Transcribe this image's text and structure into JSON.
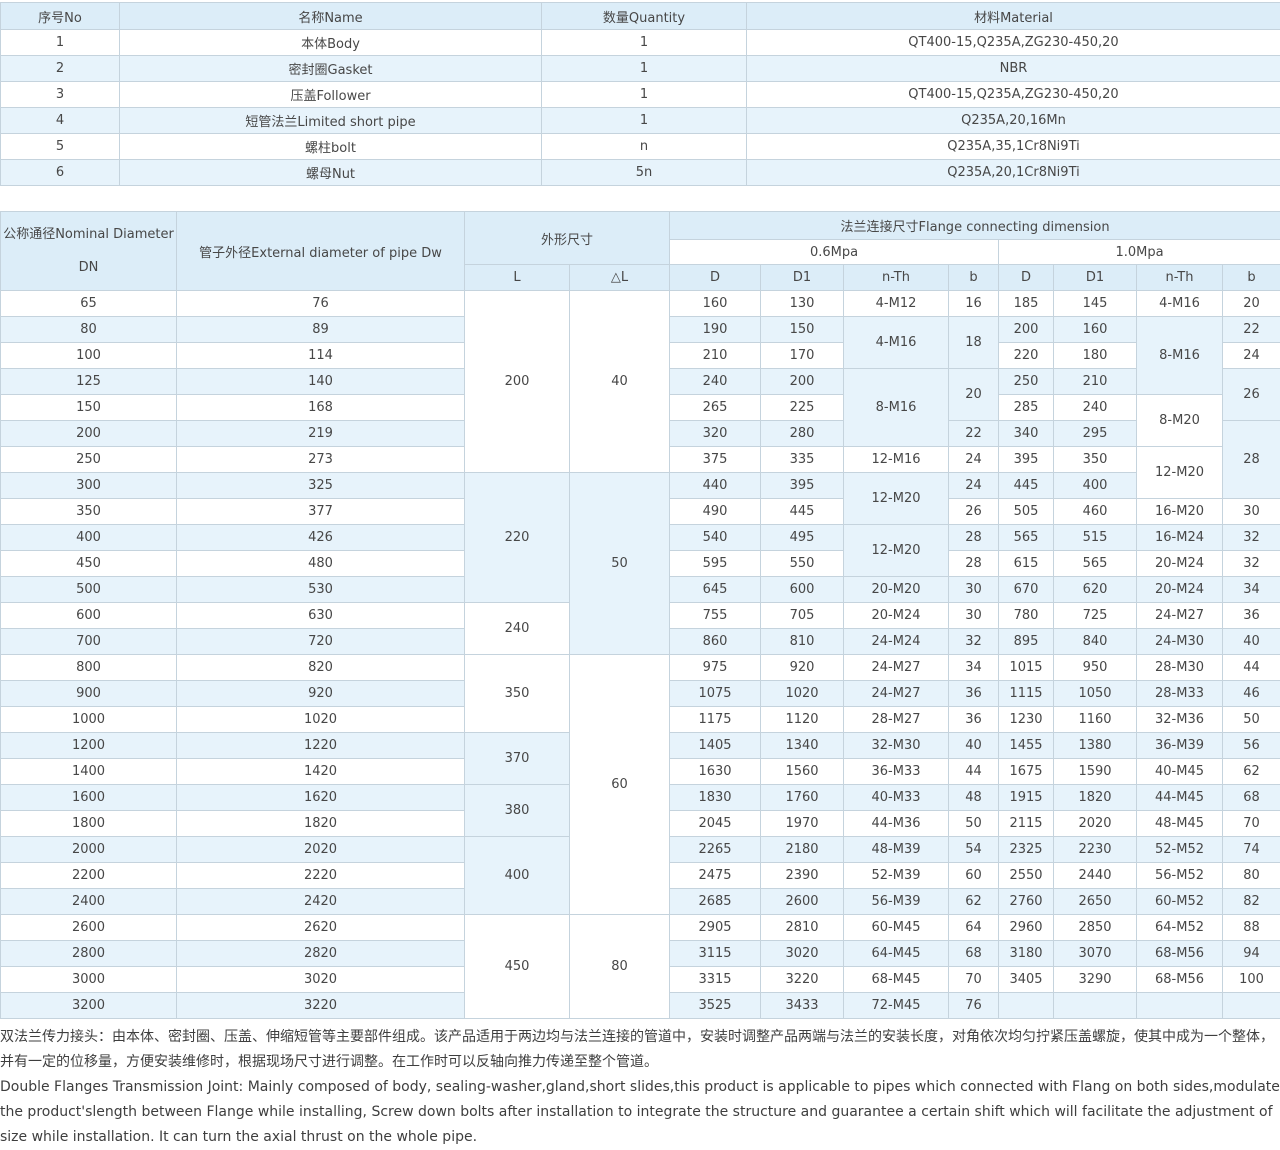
{
  "colors": {
    "header_bg": "#dcedf8",
    "stripe_bg": "#e7f3fb",
    "border": "#c5d3dd",
    "text": "#474747"
  },
  "parts_table": {
    "headers": [
      "序号No",
      "名称Name",
      "数量Quantity",
      "材料Material"
    ],
    "rows": [
      [
        "1",
        "本体Body",
        "1",
        "QT400-15,Q235A,ZG230-450,20"
      ],
      [
        "2",
        "密封圈Gasket",
        "1",
        "NBR"
      ],
      [
        "3",
        "压盖Follower",
        "1",
        "QT400-15,Q235A,ZG230-450,20"
      ],
      [
        "4",
        "短管法兰Limited short pipe",
        "1",
        "Q235A,20,16Mn"
      ],
      [
        "5",
        "螺柱bolt",
        "n",
        "Q235A,35,1Cr8Ni9Ti"
      ],
      [
        "6",
        "螺母Nut",
        "5n",
        "Q235A,20,1Cr8Ni9Ti"
      ]
    ]
  },
  "dimension_table": {
    "header": {
      "dn_line1": "公称通径Nominal Diameter",
      "dn_line2": "DN",
      "dw": "管子外径External diameter of pipe Dw",
      "shape": "外形尺寸",
      "flange": "法兰连接尺寸Flange connecting dimension",
      "p06": "0.6Mpa",
      "p10": "1.0Mpa",
      "sub": [
        "L",
        "△L",
        "D",
        "D1",
        "n-Th",
        "b",
        "D",
        "D1",
        "n-Th",
        "b"
      ]
    },
    "rows": [
      [
        "65",
        "76",
        {
          "v": "200",
          "rs": 7
        },
        {
          "v": "40",
          "rs": 7
        },
        "160",
        "130",
        "4-M12",
        "16",
        "185",
        "145",
        "4-M16",
        "20"
      ],
      [
        "80",
        "89",
        "190",
        "150",
        {
          "v": "4-M16",
          "rs": 2
        },
        {
          "v": "18",
          "rs": 2
        },
        "200",
        "160",
        {
          "v": "8-M16",
          "rs": 3
        },
        "22"
      ],
      [
        "100",
        "114",
        "210",
        "170",
        "220",
        "180",
        "24"
      ],
      [
        "125",
        "140",
        "240",
        "200",
        {
          "v": "8-M16",
          "rs": 3
        },
        {
          "v": "20",
          "rs": 2
        },
        "250",
        "210",
        {
          "v": "26",
          "rs": 2
        }
      ],
      [
        "150",
        "168",
        "265",
        "225",
        "285",
        "240",
        {
          "v": "8-M20",
          "rs": 2
        }
      ],
      [
        "200",
        "219",
        "320",
        "280",
        "22",
        "340",
        "295",
        {
          "v": "28",
          "rs": 3
        }
      ],
      [
        "250",
        "273",
        "375",
        "335",
        "12-M16",
        "24",
        "395",
        "350",
        {
          "v": "12-M20",
          "rs": 2
        }
      ],
      [
        "300",
        "325",
        {
          "v": "220",
          "rs": 5
        },
        {
          "v": "50",
          "rs": 7
        },
        "440",
        "395",
        {
          "v": "12-M20",
          "rs": 2
        },
        "24",
        "445",
        "400"
      ],
      [
        "350",
        "377",
        "490",
        "445",
        "26",
        "505",
        "460",
        "16-M20",
        "30"
      ],
      [
        "400",
        "426",
        "540",
        "495",
        {
          "v": "12-M20",
          "rs": 2
        },
        "28",
        "565",
        "515",
        "16-M24",
        "32"
      ],
      [
        "450",
        "480",
        "595",
        "550",
        "28",
        "615",
        "565",
        "20-M24",
        "32"
      ],
      [
        "500",
        "530",
        "645",
        "600",
        "20-M20",
        "30",
        "670",
        "620",
        "20-M24",
        "34"
      ],
      [
        "600",
        "630",
        {
          "v": "240",
          "rs": 2
        },
        "755",
        "705",
        "20-M24",
        "30",
        "780",
        "725",
        "24-M27",
        "36"
      ],
      [
        "700",
        "720",
        "860",
        "810",
        "24-M24",
        "32",
        "895",
        "840",
        "24-M30",
        "40"
      ],
      [
        "800",
        "820",
        {
          "v": "350",
          "rs": 3
        },
        {
          "v": "60",
          "rs": 10
        },
        "975",
        "920",
        "24-M27",
        "34",
        "1015",
        "950",
        "28-M30",
        "44"
      ],
      [
        "900",
        "920",
        "1075",
        "1020",
        "24-M27",
        "36",
        "1115",
        "1050",
        "28-M33",
        "46"
      ],
      [
        "1000",
        "1020",
        "1175",
        "1120",
        "28-M27",
        "36",
        "1230",
        "1160",
        "32-M36",
        "50"
      ],
      [
        "1200",
        "1220",
        {
          "v": "370",
          "rs": 2
        },
        "1405",
        "1340",
        "32-M30",
        "40",
        "1455",
        "1380",
        "36-M39",
        "56"
      ],
      [
        "1400",
        "1420",
        "1630",
        "1560",
        "36-M33",
        "44",
        "1675",
        "1590",
        "40-M45",
        "62"
      ],
      [
        "1600",
        "1620",
        {
          "v": "380",
          "rs": 2
        },
        "1830",
        "1760",
        "40-M33",
        "48",
        "1915",
        "1820",
        "44-M45",
        "68"
      ],
      [
        "1800",
        "1820",
        "2045",
        "1970",
        "44-M36",
        "50",
        "2115",
        "2020",
        "48-M45",
        "70"
      ],
      [
        "2000",
        "2020",
        {
          "v": "400",
          "rs": 3
        },
        "2265",
        "2180",
        "48-M39",
        "54",
        "2325",
        "2230",
        "52-M52",
        "74"
      ],
      [
        "2200",
        "2220",
        "2475",
        "2390",
        "52-M39",
        "60",
        "2550",
        "2440",
        "56-M52",
        "80"
      ],
      [
        "2400",
        "2420",
        "2685",
        "2600",
        "56-M39",
        "62",
        "2760",
        "2650",
        "60-M52",
        "82"
      ],
      [
        "2600",
        "2620",
        {
          "v": "450",
          "rs": 4
        },
        {
          "v": "80",
          "rs": 4
        },
        "2905",
        "2810",
        "60-M45",
        "64",
        "2960",
        "2850",
        "64-M52",
        "88"
      ],
      [
        "2800",
        "2820",
        "3115",
        "3020",
        "64-M45",
        "68",
        "3180",
        "3070",
        "68-M56",
        "94"
      ],
      [
        "3000",
        "3020",
        "3315",
        "3220",
        "68-M45",
        "70",
        "3405",
        "3290",
        "68-M56",
        "100"
      ],
      [
        "3200",
        "3220",
        "3525",
        "3433",
        "72-M45",
        "76",
        "",
        "",
        "",
        ""
      ]
    ]
  },
  "notes": {
    "zh": "双法兰传力接头：由本体、密封圈、压盖、伸缩短管等主要部件组成。该产品适用于两边均与法兰连接的管道中，安装时调整产品两端与法兰的安装长度，对角依次均匀拧紧压盖螺旋，使其中成为一个整体，并有一定的位移量，方便安装维修时，根据现场尺寸进行调整。在工作时可以反轴向推力传递至整个管道。",
    "en": "Double Flanges Transmission Joint: Mainly composed of body, sealing-washer,gland,short slides,this product is applicable to pipes which connected with Flang on both sides,modulate the product'slength between Flange while installing, Screw down bolts after installation to integrate the structure and guarantee a certain shift which will facilitate the adjustment of size while installation. It can turn the axial thrust on the whole pipe."
  }
}
